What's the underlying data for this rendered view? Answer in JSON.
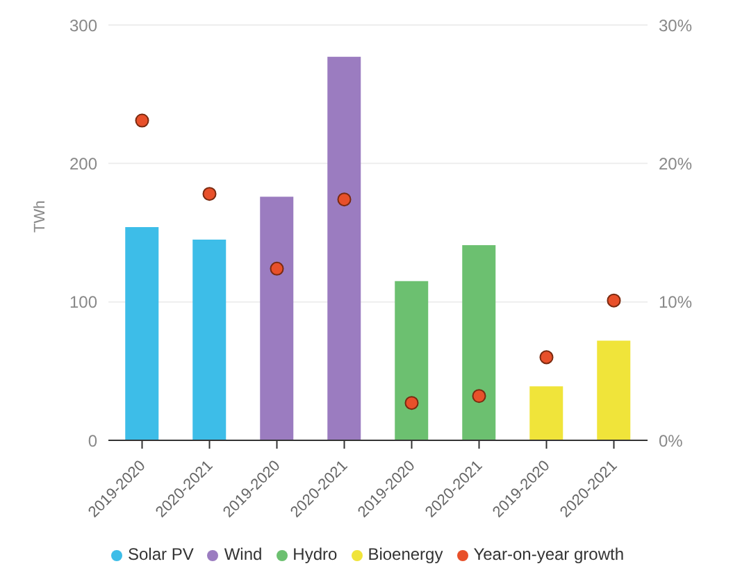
{
  "chart_data": {
    "type": "bar",
    "ylabel": "TWh",
    "categories": [
      "2019-2020",
      "2020-2021",
      "2019-2020",
      "2020-2021",
      "2019-2020",
      "2020-2021",
      "2019-2020",
      "2020-2021"
    ],
    "stacked": true,
    "series": [
      {
        "name": "Solar PV",
        "color": "#3dbde8",
        "values": [
          154,
          145,
          null,
          null,
          null,
          null,
          null,
          null
        ]
      },
      {
        "name": "Wind",
        "color": "#9b7cc0",
        "values": [
          null,
          null,
          176,
          277,
          null,
          null,
          null,
          null
        ]
      },
      {
        "name": "Hydro",
        "color": "#6cc070",
        "values": [
          null,
          null,
          null,
          null,
          115,
          141,
          null,
          null
        ]
      },
      {
        "name": "Bioenergy",
        "color": "#f0e43a",
        "values": [
          null,
          null,
          null,
          null,
          null,
          null,
          39,
          72
        ]
      },
      {
        "name": "Year-on-year growth",
        "type": "scatter",
        "axis": "y2",
        "color": "#e8502a",
        "values": [
          23.1,
          17.8,
          12.4,
          17.4,
          2.7,
          3.2,
          6.0,
          10.1
        ]
      }
    ],
    "ylim": [
      0,
      300
    ],
    "yticks": [
      0,
      100,
      200,
      300
    ],
    "y2lim": [
      0,
      30
    ],
    "y2ticks": [
      {
        "value": 0,
        "label": "0%"
      },
      {
        "value": 10,
        "label": "10%"
      },
      {
        "value": 20,
        "label": "20%"
      },
      {
        "value": 30,
        "label": "30%"
      }
    ],
    "grid": "y",
    "legend": "bottom",
    "marker": "circle"
  }
}
